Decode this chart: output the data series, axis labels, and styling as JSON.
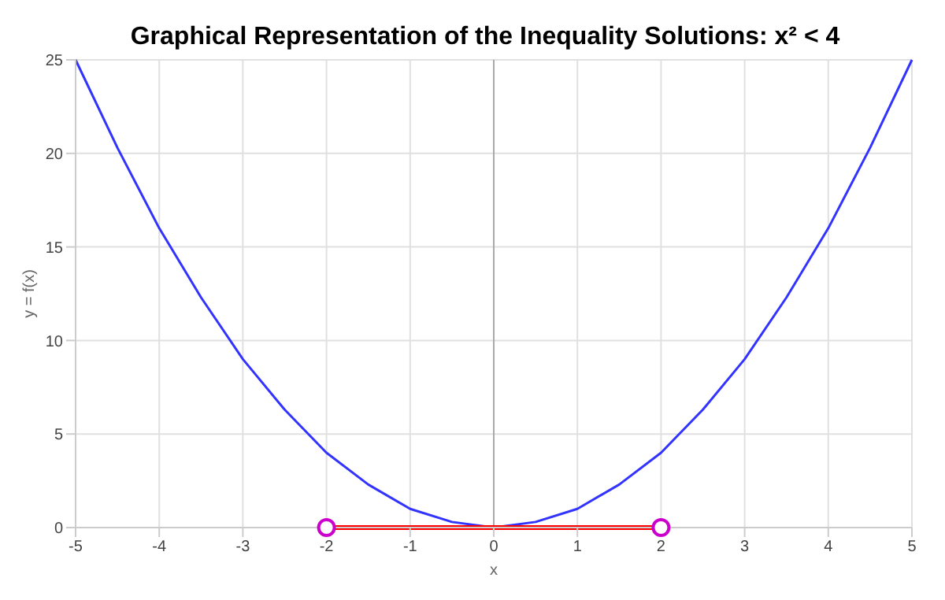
{
  "chart_data": {
    "type": "line",
    "title": "Graphical Representation of the Inequality Solutions: x² < 4",
    "xlabel": "x",
    "ylabel": "y = f(x)",
    "series": [
      {
        "color": "#3333ff",
        "x": [
          -5,
          -4.5,
          -4,
          -3.5,
          -3,
          -2.5,
          -2,
          -1.5,
          -1,
          -0.5,
          0,
          0.5,
          1,
          1.5,
          2,
          2.5,
          3,
          3.5,
          4,
          4.5,
          5
        ],
        "values": [
          25,
          20.3,
          16,
          12.3,
          9,
          6.3,
          4,
          2.3,
          1,
          0.3,
          0,
          0.3,
          1,
          2.3,
          4,
          6.3,
          9,
          12.3,
          16,
          20.3,
          25
        ]
      },
      {
        "type": "line",
        "color": "#ff0000",
        "x": [
          -2,
          2
        ],
        "values": [
          0,
          0
        ]
      },
      {
        "type": "scatter",
        "color": "#cc00cc",
        "marker": "circle",
        "x": [
          -2,
          2
        ],
        "values": [
          0,
          0
        ]
      }
    ],
    "xlim": [
      -5,
      5
    ],
    "xticks": [
      -5,
      -4,
      -3,
      -2,
      -1,
      0,
      1,
      2,
      3,
      4,
      5
    ],
    "ylim": [
      0,
      25
    ],
    "yticks": [
      0,
      5,
      10,
      15,
      20,
      25
    ],
    "grid": true,
    "ref_lines": [
      {
        "axis": "x",
        "value": 0,
        "color": "#aaaaaa"
      }
    ]
  }
}
